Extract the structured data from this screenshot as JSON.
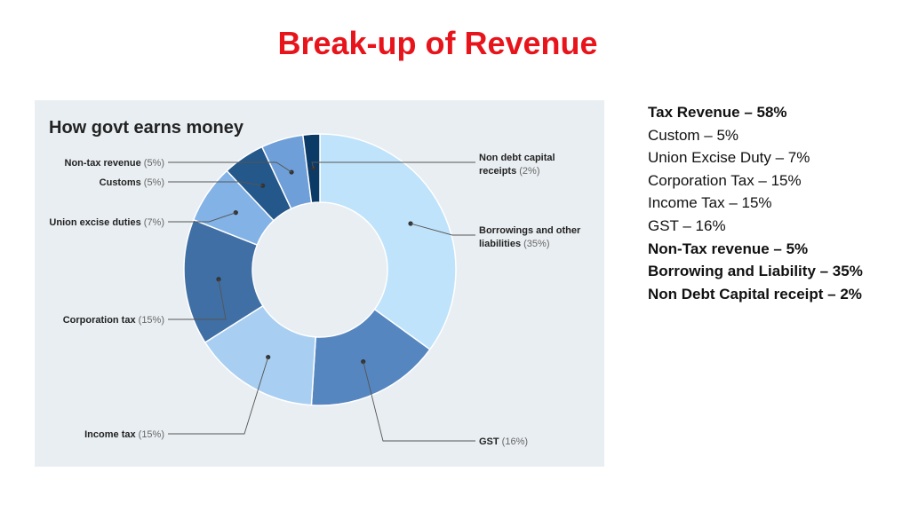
{
  "slide": {
    "title": "Break-up of Revenue"
  },
  "legend": [
    {
      "text": "Tax Revenue – 58%",
      "bold": true
    },
    {
      "text": "Custom – 5%",
      "bold": false
    },
    {
      "text": "Union Excise Duty – 7%",
      "bold": false
    },
    {
      "text": "Corporation Tax – 15%",
      "bold": false
    },
    {
      "text": "Income Tax – 15%",
      "bold": false
    },
    {
      "text": "GST – 16%",
      "bold": false
    },
    {
      "text": "Non-Tax revenue – 5%",
      "bold": true
    },
    {
      "text": "Borrowing and Liability – 35%",
      "bold": true
    },
    {
      "text": "Non Debt Capital receipt – 2%",
      "bold": true
    }
  ],
  "chart_data": {
    "type": "pie",
    "title": "How govt earns money",
    "donut": true,
    "slices": [
      {
        "name": "Borrowings and other liabilities",
        "value": 35,
        "name_line1": "Borrowings and other",
        "name_line2": "liabilities",
        "value_label": "(35%)",
        "color": "#bfe3fb"
      },
      {
        "name": "GST",
        "value": 16,
        "value_label": "(16%)",
        "color": "#5586c0"
      },
      {
        "name": "Income tax",
        "value": 15,
        "value_label": "(15%)",
        "color": "#a8cff2"
      },
      {
        "name": "Corporation tax",
        "value": 15,
        "value_label": "(15%)",
        "color": "#3f6fa4"
      },
      {
        "name": "Union excise duties",
        "value": 7,
        "value_label": "(7%)",
        "color": "#82b2e6"
      },
      {
        "name": "Customs",
        "value": 5,
        "value_label": "(5%)",
        "color": "#24578a"
      },
      {
        "name": "Non-tax revenue",
        "value": 5,
        "value_label": "(5%)",
        "color": "#6f9fd8"
      },
      {
        "name": "Non debt capital receipts",
        "value": 2,
        "name_line1": "Non debt capital",
        "name_line2": "receipts",
        "value_label": "(2%)",
        "color": "#0c3a66"
      }
    ]
  }
}
